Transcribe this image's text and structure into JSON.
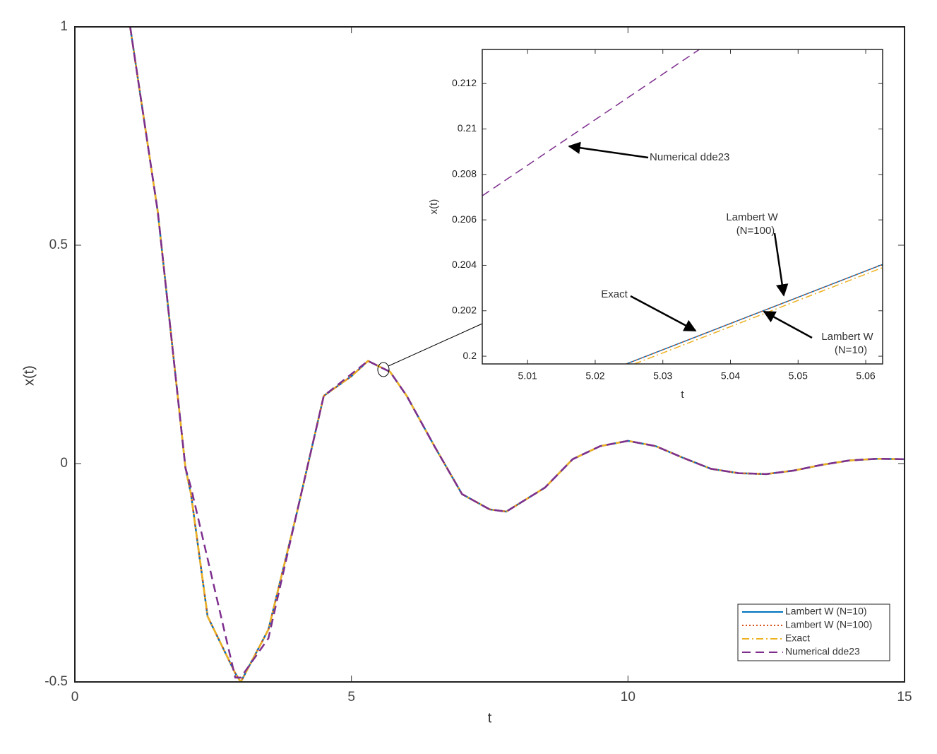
{
  "chart_data": [
    {
      "type": "line",
      "xlabel": "t",
      "ylabel": "x(t)",
      "xlim": [
        0,
        15
      ],
      "ylim": [
        -0.5,
        1
      ],
      "xticks": [
        0,
        5,
        10,
        15
      ],
      "yticks": [
        -0.5,
        0,
        0.5,
        1
      ],
      "legend": "lower right",
      "x": [
        1,
        1.5,
        2,
        2.1,
        2.4,
        2.9,
        3,
        3.5,
        4,
        4.5,
        5,
        5.3,
        5.7,
        6,
        6.5,
        7,
        7.5,
        7.8,
        8.5,
        9,
        9.5,
        10,
        10.5,
        11,
        11.5,
        12,
        12.5,
        13,
        13.5,
        14,
        14.5,
        15
      ],
      "series": [
        {
          "name": "Lambert W (N=10)",
          "color": "#0072bd",
          "linestyle": "solid",
          "values": [
            1,
            0.576,
            -0.01,
            -0.07,
            -0.35,
            -0.48,
            -0.5,
            -0.38,
            -0.12,
            0.155,
            0.2,
            0.235,
            0.21,
            0.155,
            0.04,
            -0.07,
            -0.105,
            -0.11,
            -0.055,
            0.01,
            0.04,
            0.052,
            0.04,
            0.013,
            -0.012,
            -0.022,
            -0.024,
            -0.016,
            -0.003,
            0.007,
            0.011,
            0.01
          ]
        },
        {
          "name": "Lambert W (N=100)",
          "color": "#d95319",
          "linestyle": "dotted",
          "values": [
            1,
            0.576,
            -0.01,
            -0.07,
            -0.35,
            -0.48,
            -0.5,
            -0.38,
            -0.12,
            0.155,
            0.2,
            0.235,
            0.21,
            0.155,
            0.04,
            -0.07,
            -0.105,
            -0.11,
            -0.055,
            0.01,
            0.04,
            0.052,
            0.04,
            0.013,
            -0.012,
            -0.022,
            -0.024,
            -0.016,
            -0.003,
            0.007,
            0.011,
            0.01
          ]
        },
        {
          "name": "Exact",
          "color": "#edb120",
          "linestyle": "dashdot",
          "values": [
            1,
            0.576,
            -0.01,
            -0.07,
            -0.35,
            -0.48,
            -0.5,
            -0.38,
            -0.12,
            0.155,
            0.2,
            0.235,
            0.21,
            0.155,
            0.04,
            -0.07,
            -0.105,
            -0.11,
            -0.055,
            0.01,
            0.04,
            0.052,
            0.04,
            0.013,
            -0.012,
            -0.022,
            -0.024,
            -0.016,
            -0.003,
            0.007,
            0.011,
            0.01
          ]
        },
        {
          "name": "Numerical dde23",
          "color": "#7e2f8e",
          "linestyle": "dashed",
          "values": [
            1,
            0.576,
            -0.01,
            -0.055,
            -0.218,
            -0.49,
            -0.49,
            -0.4,
            -0.12,
            0.155,
            0.205,
            0.235,
            0.21,
            0.155,
            0.04,
            -0.07,
            -0.105,
            -0.11,
            -0.055,
            0.01,
            0.04,
            0.052,
            0.04,
            0.013,
            -0.012,
            -0.022,
            -0.024,
            -0.016,
            -0.003,
            0.007,
            0.011,
            0.01
          ]
        }
      ]
    },
    {
      "type": "line",
      "xlabel": "t",
      "ylabel": "x(t)",
      "xlim": [
        5.0033,
        5.0625
      ],
      "ylim": [
        0.19966,
        0.2135
      ],
      "xticks": [
        5.01,
        5.02,
        5.03,
        5.04,
        5.05,
        5.06
      ],
      "yticks": [
        0.2,
        0.202,
        0.204,
        0.206,
        0.208,
        0.21,
        0.212
      ],
      "series": [
        {
          "color": "#0072bd",
          "linestyle": "solid",
          "x": [
            5.0246,
            5.0625
          ],
          "values": [
            0.19966,
            0.20404
          ]
        },
        {
          "color": "#d95319",
          "linestyle": "dotted",
          "x": [
            5.0246,
            5.0625
          ],
          "values": [
            0.19966,
            0.20404
          ]
        },
        {
          "color": "#edb120",
          "linestyle": "dashdot",
          "x": [
            5.0258,
            5.0625
          ],
          "values": [
            0.19966,
            0.2039
          ]
        },
        {
          "color": "#7e2f8e",
          "linestyle": "dashed",
          "x": [
            5.0033,
            5.0354
          ],
          "values": [
            0.20706,
            0.2135
          ]
        }
      ],
      "annotations": [
        {
          "text": [
            "Numerical dde23"
          ]
        },
        {
          "text": [
            "Lambert W",
            "(N=100)"
          ]
        },
        {
          "text": [
            "Exact"
          ]
        },
        {
          "text": [
            "Lambert W",
            "(N=10)"
          ]
        }
      ]
    }
  ]
}
